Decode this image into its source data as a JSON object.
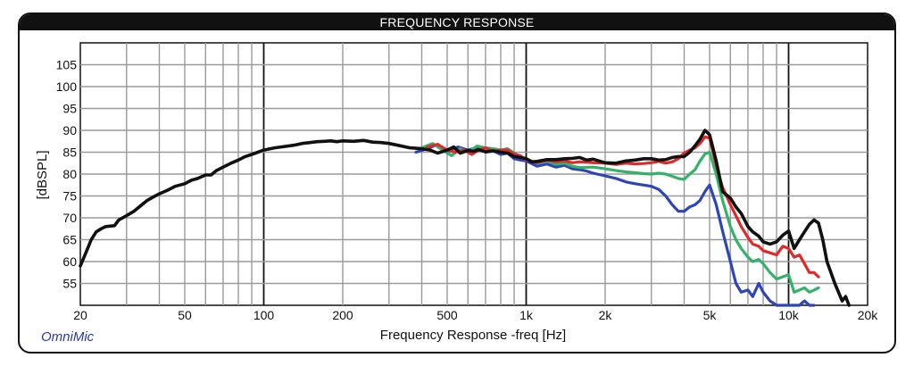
{
  "header": {
    "title": "FREQUENCY RESPONSE"
  },
  "brand": "OmniMic",
  "chart_data": {
    "type": "line",
    "title": "FREQUENCY RESPONSE",
    "xlabel": "Frequency Response -freq [Hz]",
    "ylabel": "[dBSPL]",
    "xscale": "log",
    "xlim": [
      20,
      20000
    ],
    "ylim": [
      50,
      110
    ],
    "grid": true,
    "x_tick_labels": [
      {
        "value": 20,
        "label": "20"
      },
      {
        "value": 50,
        "label": "50"
      },
      {
        "value": 100,
        "label": "100"
      },
      {
        "value": 200,
        "label": "200"
      },
      {
        "value": 500,
        "label": "500"
      },
      {
        "value": 1000,
        "label": "1k"
      },
      {
        "value": 2000,
        "label": "2k"
      },
      {
        "value": 5000,
        "label": "5k"
      },
      {
        "value": 10000,
        "label": "10k"
      },
      {
        "value": 20000,
        "label": "20k"
      }
    ],
    "y_tick_labels": [
      {
        "value": 55,
        "label": "55"
      },
      {
        "value": 60,
        "label": "60"
      },
      {
        "value": 65,
        "label": "65"
      },
      {
        "value": 70,
        "label": "70"
      },
      {
        "value": 75,
        "label": "75"
      },
      {
        "value": 80,
        "label": "80"
      },
      {
        "value": 85,
        "label": "85"
      },
      {
        "value": 90,
        "label": "90"
      },
      {
        "value": 95,
        "label": "95"
      },
      {
        "value": 100,
        "label": "100"
      },
      {
        "value": 105,
        "label": "105"
      }
    ],
    "series": [
      {
        "color": "#2e45b8",
        "x": [
          380,
          420,
          460,
          500,
          550,
          600,
          650,
          700,
          750,
          800,
          850,
          900,
          950,
          1000,
          1100,
          1200,
          1300,
          1400,
          1500,
          1600,
          1700,
          1800,
          2000,
          2200,
          2400,
          2600,
          2800,
          3000,
          3200,
          3400,
          3600,
          3800,
          4000,
          4200,
          4400,
          4600,
          4800,
          5000,
          5300,
          5600,
          6000,
          6300,
          6600,
          7000,
          7300,
          7700,
          8000,
          8500,
          9000,
          9500,
          10000,
          10500,
          11000,
          11500,
          12000,
          12500
        ],
        "y": [
          85,
          85.8,
          86.8,
          85.2,
          86.2,
          85.5,
          86,
          85,
          85.3,
          84.5,
          84.8,
          83.5,
          83.2,
          83,
          81.8,
          82.3,
          81.6,
          82,
          81.2,
          81,
          80.7,
          80.2,
          79.6,
          79,
          78.2,
          77.8,
          77.5,
          77.2,
          76.5,
          75,
          73,
          71.5,
          71.5,
          72.5,
          73,
          74,
          76,
          77.5,
          73,
          67,
          60,
          55,
          53,
          53.5,
          52,
          55,
          53,
          51,
          50,
          50,
          50,
          50,
          50,
          51,
          50,
          50
        ]
      },
      {
        "color": "#33b36a",
        "x": [
          400,
          440,
          480,
          520,
          560,
          600,
          650,
          700,
          750,
          800,
          850,
          900,
          950,
          1000,
          1100,
          1200,
          1300,
          1400,
          1500,
          1600,
          1800,
          2000,
          2200,
          2400,
          2600,
          2800,
          3000,
          3200,
          3400,
          3600,
          3800,
          4000,
          4200,
          4400,
          4600,
          4800,
          5000,
          5300,
          5600,
          6000,
          6300,
          6600,
          7000,
          7300,
          7700,
          8000,
          8500,
          9000,
          9500,
          10000,
          10500,
          11000,
          11500,
          12000,
          12500,
          13000
        ],
        "y": [
          86,
          87,
          85.5,
          84.2,
          85.8,
          85,
          86.4,
          86,
          85.8,
          85.5,
          85.8,
          84.8,
          84,
          83.5,
          82.5,
          83,
          82.2,
          82.5,
          81.8,
          81.5,
          81.6,
          81.2,
          80.8,
          80.5,
          80.3,
          80.1,
          80,
          80.2,
          80,
          79.5,
          79,
          78.8,
          80,
          81,
          83,
          84.6,
          85,
          80,
          74,
          68,
          65,
          63,
          61,
          60,
          60.5,
          59.5,
          57.5,
          56,
          56.5,
          57,
          53,
          53.5,
          54,
          53,
          53.5,
          54
        ]
      },
      {
        "color": "#e02a2a",
        "x": [
          420,
          460,
          500,
          540,
          580,
          620,
          660,
          700,
          750,
          800,
          850,
          900,
          950,
          1000,
          1100,
          1200,
          1300,
          1400,
          1500,
          1600,
          1800,
          2000,
          2200,
          2400,
          2600,
          2800,
          3000,
          3200,
          3400,
          3600,
          3800,
          4000,
          4200,
          4400,
          4600,
          4800,
          5000,
          5300,
          5600,
          6000,
          6300,
          6600,
          7000,
          7300,
          7700,
          8000,
          8500,
          9000,
          9500,
          10000,
          10500,
          11000,
          11500,
          12000,
          12500,
          13000
        ],
        "y": [
          86.2,
          86.8,
          85.5,
          85,
          85.5,
          84.5,
          85.5,
          86,
          85.2,
          85.5,
          85.5,
          84.6,
          84.2,
          83.2,
          82.6,
          83.2,
          82.8,
          83,
          82.6,
          82.8,
          82.6,
          82.5,
          82.2,
          82.5,
          82.3,
          82.4,
          82.6,
          82.9,
          82.5,
          82.8,
          83.5,
          84.8,
          85.5,
          86,
          87,
          88.5,
          88.2,
          82,
          77,
          73,
          70.5,
          68,
          65.5,
          64,
          63.5,
          62.5,
          62,
          61.5,
          63.5,
          63,
          61,
          61.5,
          59.5,
          57.5,
          57.5,
          56.5
        ]
      },
      {
        "color": "#111111",
        "x": [
          20,
          21,
          22,
          23,
          24,
          25,
          27,
          28,
          30,
          32,
          34,
          36,
          38,
          40,
          43,
          46,
          50,
          53,
          56,
          60,
          63,
          66,
          70,
          75,
          80,
          85,
          90,
          95,
          100,
          110,
          120,
          130,
          140,
          150,
          160,
          170,
          180,
          190,
          200,
          220,
          240,
          260,
          280,
          300,
          330,
          360,
          400,
          430,
          460,
          500,
          530,
          560,
          600,
          630,
          660,
          700,
          750,
          800,
          850,
          900,
          950,
          1000,
          1050,
          1100,
          1200,
          1300,
          1400,
          1500,
          1600,
          1700,
          1800,
          2000,
          2200,
          2400,
          2600,
          2800,
          3000,
          3200,
          3400,
          3600,
          3800,
          4000,
          4200,
          4400,
          4600,
          4800,
          5000,
          5300,
          5600,
          6000,
          6300,
          6600,
          7000,
          7300,
          7700,
          8000,
          8500,
          9000,
          9500,
          10000,
          10500,
          11000,
          11500,
          12000,
          12500,
          13000,
          13500,
          14000,
          15000,
          16000,
          16500,
          17000
        ],
        "y": [
          59,
          62,
          65,
          66.8,
          67.5,
          68,
          68.2,
          69.5,
          70.5,
          71.5,
          72.8,
          74,
          74.8,
          75.5,
          76.3,
          77.2,
          77.8,
          78.6,
          79,
          79.8,
          79.8,
          80.8,
          81.6,
          82.5,
          83.2,
          84,
          84.5,
          85,
          85.5,
          86,
          86.3,
          86.6,
          87,
          87.2,
          87.4,
          87.5,
          87.6,
          87.4,
          87.6,
          87.5,
          87.7,
          87.3,
          87.2,
          87,
          86.5,
          86,
          85.8,
          85.5,
          84.8,
          85.5,
          86.2,
          84.8,
          85.4,
          85.2,
          85.6,
          85.1,
          85.3,
          85,
          84.8,
          84,
          83.8,
          83.5,
          82.8,
          82.9,
          83.3,
          83.3,
          83.5,
          83.6,
          83.8,
          83.2,
          83.4,
          82.6,
          82.5,
          83,
          83.2,
          83.5,
          83.5,
          83.2,
          83.3,
          83.8,
          84,
          84,
          85,
          86.5,
          88,
          90,
          89,
          83,
          76,
          74.5,
          72.5,
          71,
          68,
          66.8,
          65.8,
          64.5,
          64,
          64.5,
          66,
          67,
          63,
          65,
          66.8,
          68.5,
          69.5,
          68.8,
          65,
          60,
          55,
          51,
          52,
          50
        ]
      }
    ]
  }
}
